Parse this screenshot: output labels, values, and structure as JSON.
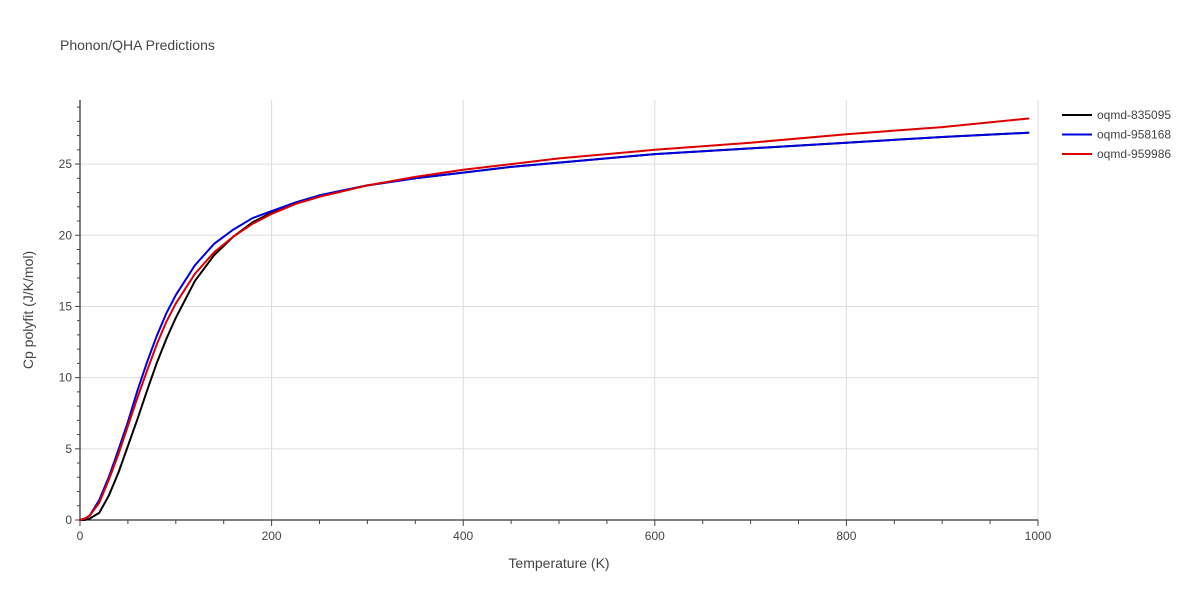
{
  "chart_data": {
    "type": "line",
    "title": "Phonon/QHA Predictions",
    "xlabel": "Temperature (K)",
    "ylabel": "Cp polyfit (J/K/mol)",
    "xlim": [
      0,
      1000
    ],
    "ylim": [
      0,
      29.5
    ],
    "xticks": [
      0,
      200,
      400,
      600,
      800,
      1000
    ],
    "yticks": [
      0,
      5,
      10,
      15,
      20,
      25
    ],
    "grid": true,
    "legend_position": "top-right",
    "series": [
      {
        "name": "oqmd-835095",
        "color": "#000000",
        "x": [
          0,
          5,
          10,
          20,
          30,
          40,
          50,
          60,
          70,
          80,
          90,
          100,
          120,
          140,
          160,
          180,
          200,
          225,
          250,
          300,
          350,
          400,
          450,
          500,
          600,
          700,
          800,
          900,
          990
        ],
        "y": [
          0,
          0.0,
          0.1,
          0.5,
          1.7,
          3.3,
          5.2,
          7.1,
          9.1,
          11.0,
          12.7,
          14.2,
          16.8,
          18.6,
          19.9,
          20.9,
          21.6,
          22.3,
          22.8,
          23.5,
          24.0,
          24.4,
          24.8,
          25.1,
          25.7,
          26.1,
          26.5,
          26.9,
          27.2
        ]
      },
      {
        "name": "oqmd-958168",
        "color": "#0000dd",
        "x": [
          0,
          5,
          10,
          20,
          30,
          40,
          50,
          60,
          70,
          80,
          90,
          100,
          120,
          140,
          160,
          180,
          200,
          225,
          250,
          300,
          350,
          400,
          450,
          500,
          600,
          700,
          800,
          900,
          990
        ],
        "y": [
          0,
          0.1,
          0.3,
          1.4,
          3.0,
          4.9,
          6.9,
          9.1,
          11.1,
          12.9,
          14.5,
          15.8,
          17.9,
          19.4,
          20.4,
          21.2,
          21.7,
          22.3,
          22.8,
          23.5,
          24.0,
          24.4,
          24.8,
          25.1,
          25.7,
          26.1,
          26.5,
          26.9,
          27.2
        ]
      },
      {
        "name": "oqmd-959986",
        "color": "#dd0000",
        "x": [
          0,
          5,
          10,
          20,
          30,
          40,
          50,
          60,
          70,
          80,
          90,
          100,
          120,
          140,
          160,
          180,
          200,
          225,
          250,
          300,
          350,
          400,
          450,
          500,
          600,
          700,
          800,
          900,
          990
        ],
        "y": [
          0,
          0.1,
          0.3,
          1.2,
          2.8,
          4.6,
          6.6,
          8.6,
          10.5,
          12.3,
          13.9,
          15.2,
          17.3,
          18.8,
          19.9,
          20.8,
          21.5,
          22.2,
          22.7,
          23.5,
          24.1,
          24.6,
          25.0,
          25.4,
          26.0,
          26.5,
          27.1,
          27.6,
          28.2
        ]
      }
    ]
  }
}
